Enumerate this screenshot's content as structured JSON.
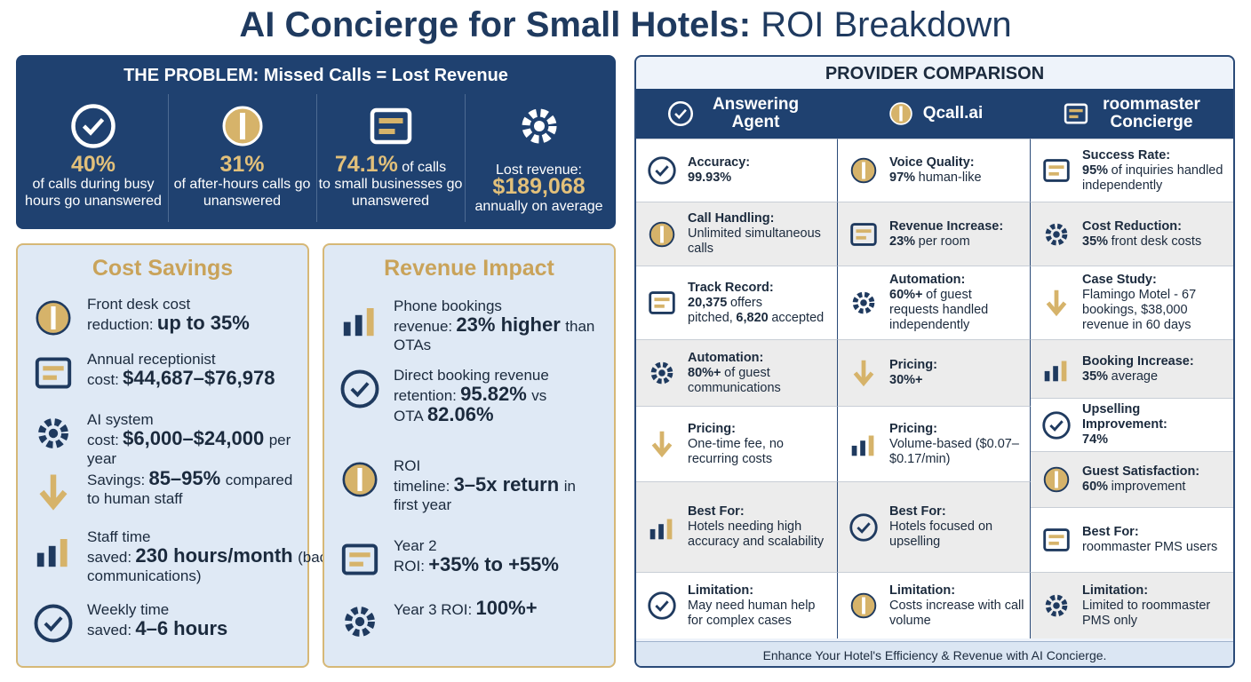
{
  "title": {
    "bold": "AI Concierge for Small Hotels:",
    "rest": "ROI Breakdown"
  },
  "problem": {
    "heading": "THE PROBLEM: Missed Calls = Lost Revenue",
    "stats": [
      {
        "value": "40%",
        "text": "of calls during busy hours go unanswered"
      },
      {
        "value": "31%",
        "text": "of after-hours calls go unanswered"
      },
      {
        "value": "74.1%",
        "lead": "of calls",
        "text": "to small businesses go unanswered"
      },
      {
        "label": "Lost revenue:",
        "value": "$189,068",
        "text": "annually on average"
      }
    ]
  },
  "cost_savings": {
    "heading": "Cost Savings",
    "items": [
      {
        "label": "Front desk cost reduction:",
        "body": [
          {
            "strong": "up to 35%"
          }
        ]
      },
      {
        "label": "Annual receptionist cost:",
        "body": [
          {
            "strong": "$44,687–$76,978"
          }
        ]
      },
      {
        "label": "AI system cost:",
        "body": [
          {
            "strong": "$6,000–$24,000"
          },
          {
            "text": "per year"
          }
        ]
      },
      {
        "label": "Savings:",
        "body": [
          {
            "strong": "85–95%"
          },
          {
            "text": "compared to human staff"
          }
        ]
      },
      {
        "label": "Staff time saved:",
        "body": [
          {
            "strong": "230 hours/month"
          },
          {
            "text": "(backend communications)"
          }
        ]
      },
      {
        "label": "Weekly time saved:",
        "body": [
          {
            "strong": "4–6 hours"
          }
        ]
      }
    ]
  },
  "revenue_impact": {
    "heading": "Revenue Impact",
    "items": [
      {
        "label": "Phone bookings revenue:",
        "body": [
          {
            "strong": "23% higher"
          },
          {
            "text": "than OTAs"
          }
        ]
      },
      {
        "label": "Direct booking revenue retention:",
        "body": [
          {
            "strong": "95.82%"
          },
          {
            "text": "vs OTA"
          },
          {
            "strong": "82.06%"
          }
        ]
      },
      {
        "label": "ROI timeline:",
        "body": [
          {
            "strong": "3–5x return"
          },
          {
            "text": "in first year"
          }
        ]
      },
      {
        "label": "Year 2 ROI:",
        "body": [
          {
            "strong": "+35% to +55%"
          }
        ]
      },
      {
        "label": "Year 3 ROI:",
        "body": [
          {
            "strong": "100%+"
          }
        ]
      }
    ]
  },
  "comparison": {
    "heading": "PROVIDER COMPARISON",
    "providers": [
      {
        "name": "Answering Agent",
        "cells": [
          {
            "label": "Accuracy:",
            "body": [
              {
                "strong": "99.93%"
              }
            ]
          },
          {
            "label": "Call Handling:",
            "body": [
              {
                "text": "Unlimited simultaneous calls"
              }
            ]
          },
          {
            "label": "Track Record:",
            "body": [
              {
                "strong": "20,375"
              },
              {
                "text": "offers pitched,"
              },
              {
                "strong": "6,820"
              },
              {
                "text": "accepted"
              }
            ]
          },
          {
            "label": "Automation:",
            "body": [
              {
                "strong": "80%+"
              },
              {
                "text": "of guest communications"
              }
            ]
          },
          {
            "label": "Pricing:",
            "body": [
              {
                "text": "One-time fee, no recurring costs"
              }
            ]
          },
          {
            "label": "Best For:",
            "body": [
              {
                "text": "Hotels needing high accuracy and scalability"
              }
            ]
          },
          {
            "label": "Limitation:",
            "body": [
              {
                "text": "May need human help for complex cases"
              }
            ]
          }
        ]
      },
      {
        "name": "Qcall.ai",
        "cells": [
          {
            "label": "Voice Quality:",
            "body": [
              {
                "strong": "97%"
              },
              {
                "text": "human-like"
              }
            ]
          },
          {
            "label": "Revenue Increase:",
            "body": [
              {
                "strong": "23%"
              },
              {
                "text": "per room"
              }
            ]
          },
          {
            "label": "Automation:",
            "body": [
              {
                "strong": "60%+"
              },
              {
                "text": "of guest requests handled independently"
              }
            ]
          },
          {
            "label": "Pricing:",
            "body": [
              {
                "strong": "30%+"
              }
            ]
          },
          {
            "label": "Pricing:",
            "body": [
              {
                "text": "Volume-based ($0.07–$0.17/min)"
              }
            ]
          },
          {
            "label": "Best For:",
            "body": [
              {
                "text": "Hotels focused on upselling"
              }
            ]
          },
          {
            "label": "Limitation:",
            "body": [
              {
                "text": "Costs increase with call volume"
              }
            ]
          }
        ]
      },
      {
        "name": "roommaster Concierge",
        "cells": [
          {
            "label": "Success Rate:",
            "body": [
              {
                "strong": "95%"
              },
              {
                "text": "of inquiries handled independently"
              }
            ]
          },
          {
            "label": "Cost Reduction:",
            "body": [
              {
                "strong": "35%"
              },
              {
                "text": "front desk costs"
              }
            ]
          },
          {
            "label": "Case Study:",
            "body": [
              {
                "text": "Flamingo Motel - 67 bookings, $38,000 revenue in 60 days"
              }
            ]
          },
          {
            "label": "Booking Increase:",
            "body": [
              {
                "strong": "35%"
              },
              {
                "text": "average"
              }
            ]
          },
          {
            "label": "Upselling Improvement:",
            "body": [
              {
                "strong": "74%"
              }
            ]
          },
          {
            "label": "Guest Satisfaction:",
            "body": [
              {
                "strong": "60%"
              },
              {
                "text": "improvement"
              }
            ]
          },
          {
            "label": "Best For:",
            "body": [
              {
                "text": "roommaster PMS users"
              }
            ]
          },
          {
            "label": "Limitation:",
            "body": [
              {
                "text": "Limited to roommaster PMS only"
              }
            ]
          }
        ]
      }
    ],
    "footer": "Enhance Your Hotel's Efficiency & Revenue with AI Concierge."
  }
}
